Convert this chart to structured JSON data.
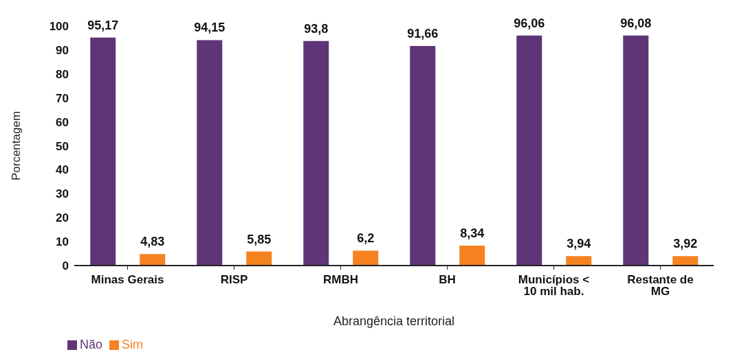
{
  "chart_data": {
    "type": "bar",
    "xlabel": "Abrangência territorial",
    "ylabel": "Porcentagem",
    "categories": [
      "Minas Gerais",
      "RISP",
      "RMBH",
      "BH",
      "Municípios < 10 mil hab.",
      "Restante de MG"
    ],
    "series": [
      {
        "name": "Não",
        "color": "#5f3577",
        "values": [
          95.17,
          94.15,
          93.8,
          91.66,
          96.06,
          96.08
        ],
        "value_labels": [
          "95,17",
          "94,15",
          "93,8",
          "91,66",
          "96,06",
          "96,08"
        ]
      },
      {
        "name": "Sim",
        "color": "#f58220",
        "values": [
          4.83,
          5.85,
          6.2,
          8.34,
          3.94,
          3.92
        ],
        "value_labels": [
          "4,83",
          "5,85",
          "6,2",
          "8,34",
          "3,94",
          "3,92"
        ]
      }
    ],
    "ylim": [
      0,
      100
    ],
    "yticks": [
      0,
      10,
      20,
      30,
      40,
      50,
      60,
      70,
      80,
      90,
      100
    ],
    "grid": false,
    "legend": "bottom left"
  }
}
